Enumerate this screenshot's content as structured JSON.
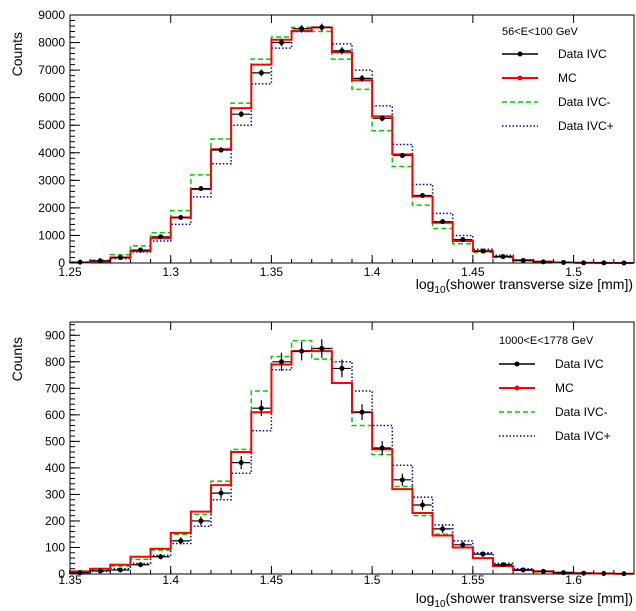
{
  "chart_data": [
    {
      "type": "line",
      "title": "56<E<100 GeV",
      "xlabel": {
        "prefix": "log",
        "sub": "10",
        "rest": "(shower transverse size [mm])"
      },
      "ylabel": "Counts",
      "xlim": [
        1.25,
        1.53
      ],
      "ylim": [
        0,
        9000
      ],
      "bin_width": 0.01,
      "grid": false,
      "legend_placement": "top-right",
      "x_ticks": [
        {
          "v": 1.25,
          "label": "1.25"
        },
        {
          "v": 1.3,
          "label": "1.3"
        },
        {
          "v": 1.35,
          "label": "1.35"
        },
        {
          "v": 1.4,
          "label": "1.4"
        },
        {
          "v": 1.45,
          "label": "1.45"
        },
        {
          "v": 1.5,
          "label": "1.5"
        }
      ],
      "y_ticks": [
        {
          "v": 0,
          "label": "0"
        },
        {
          "v": 1000,
          "label": "1000"
        },
        {
          "v": 2000,
          "label": "2000"
        },
        {
          "v": 3000,
          "label": "3000"
        },
        {
          "v": 4000,
          "label": "4000"
        },
        {
          "v": 5000,
          "label": "5000"
        },
        {
          "v": 6000,
          "label": "6000"
        },
        {
          "v": 7000,
          "label": "7000"
        },
        {
          "v": 8000,
          "label": "8000"
        },
        {
          "v": 9000,
          "label": "9000"
        }
      ],
      "x_edges": [
        1.25,
        1.26,
        1.27,
        1.28,
        1.29,
        1.3,
        1.31,
        1.32,
        1.33,
        1.34,
        1.35,
        1.36,
        1.37,
        1.38,
        1.39,
        1.4,
        1.41,
        1.42,
        1.43,
        1.44,
        1.45,
        1.46,
        1.47,
        1.48,
        1.49,
        1.5,
        1.51,
        1.52,
        1.53
      ],
      "series": [
        {
          "name": "Data IVC",
          "style": "points",
          "color": "#000000",
          "values": [
            30,
            80,
            200,
            470,
            950,
            1650,
            2700,
            4100,
            5400,
            6900,
            8000,
            8500,
            8550,
            7700,
            6700,
            5250,
            3900,
            2450,
            1500,
            850,
            430,
            230,
            90,
            40,
            20,
            5,
            5,
            2
          ]
        },
        {
          "name": "MC",
          "style": "solid",
          "color": "#ff0000",
          "values": [
            20,
            60,
            200,
            430,
            900,
            1650,
            2680,
            4130,
            5620,
            7200,
            8100,
            8420,
            8550,
            7650,
            6630,
            5320,
            3940,
            2420,
            1460,
            800,
            430,
            230,
            100,
            50,
            20,
            8,
            5,
            2
          ]
        },
        {
          "name": "Data IVC-",
          "style": "dashed",
          "color": "#00cc00",
          "values": [
            30,
            100,
            300,
            620,
            1100,
            1900,
            3200,
            4500,
            5800,
            7400,
            8200,
            8550,
            8400,
            7400,
            6300,
            4800,
            3500,
            2100,
            1250,
            700,
            380,
            200,
            80,
            30,
            15,
            5,
            2,
            1
          ]
        },
        {
          "name": "Data IVC+",
          "style": "dotted",
          "color": "#0000cc",
          "values": [
            20,
            60,
            160,
            400,
            800,
            1400,
            2400,
            3600,
            5000,
            6500,
            7800,
            8400,
            8550,
            7950,
            7000,
            5700,
            4300,
            2850,
            1800,
            1000,
            500,
            280,
            120,
            50,
            20,
            10,
            5,
            2
          ]
        }
      ]
    },
    {
      "type": "line",
      "title": "1000<E<1778 GeV",
      "xlabel": {
        "prefix": "log",
        "sub": "10",
        "rest": "(shower transverse size [mm])"
      },
      "ylabel": "Counts",
      "xlim": [
        1.35,
        1.63
      ],
      "ylim": [
        0,
        950
      ],
      "bin_width": 0.01,
      "grid": false,
      "legend_placement": "top-right",
      "x_ticks": [
        {
          "v": 1.35,
          "label": "1.35"
        },
        {
          "v": 1.4,
          "label": "1.4"
        },
        {
          "v": 1.45,
          "label": "1.45"
        },
        {
          "v": 1.5,
          "label": "1.5"
        },
        {
          "v": 1.55,
          "label": "1.55"
        },
        {
          "v": 1.6,
          "label": "1.6"
        }
      ],
      "y_ticks": [
        {
          "v": 0,
          "label": "0"
        },
        {
          "v": 100,
          "label": "100"
        },
        {
          "v": 200,
          "label": "200"
        },
        {
          "v": 300,
          "label": "300"
        },
        {
          "v": 400,
          "label": "400"
        },
        {
          "v": 500,
          "label": "500"
        },
        {
          "v": 600,
          "label": "600"
        },
        {
          "v": 700,
          "label": "700"
        },
        {
          "v": 800,
          "label": "800"
        },
        {
          "v": 900,
          "label": "900"
        }
      ],
      "x_edges": [
        1.35,
        1.36,
        1.37,
        1.38,
        1.39,
        1.4,
        1.41,
        1.42,
        1.43,
        1.44,
        1.45,
        1.46,
        1.47,
        1.48,
        1.49,
        1.5,
        1.51,
        1.52,
        1.53,
        1.54,
        1.55,
        1.56,
        1.57,
        1.58,
        1.59,
        1.6,
        1.61,
        1.62,
        1.63
      ],
      "series": [
        {
          "name": "Data IVC",
          "style": "points",
          "color": "#000000",
          "values": [
            5,
            12,
            15,
            35,
            65,
            125,
            200,
            305,
            420,
            625,
            800,
            840,
            850,
            775,
            610,
            475,
            355,
            260,
            170,
            110,
            75,
            35,
            15,
            10,
            5,
            3,
            2,
            1
          ]
        },
        {
          "name": "MC",
          "style": "solid",
          "color": "#ff0000",
          "values": [
            10,
            20,
            35,
            65,
            95,
            155,
            235,
            335,
            460,
            610,
            790,
            840,
            840,
            720,
            610,
            470,
            320,
            230,
            145,
            100,
            60,
            30,
            15,
            10,
            5,
            3,
            2,
            1
          ]
        },
        {
          "name": "Data IVC-",
          "style": "dashed",
          "color": "#00cc00",
          "values": [
            8,
            15,
            30,
            55,
            90,
            150,
            225,
            350,
            470,
            690,
            820,
            880,
            810,
            720,
            560,
            450,
            330,
            220,
            150,
            100,
            60,
            30,
            15,
            8,
            5,
            2,
            1,
            1
          ]
        },
        {
          "name": "Data IVC+",
          "style": "dotted",
          "color": "#0000cc",
          "values": [
            5,
            10,
            20,
            40,
            70,
            115,
            180,
            280,
            380,
            540,
            770,
            840,
            850,
            800,
            690,
            560,
            410,
            290,
            185,
            125,
            80,
            40,
            20,
            10,
            5,
            3,
            2,
            1
          ]
        }
      ]
    }
  ]
}
